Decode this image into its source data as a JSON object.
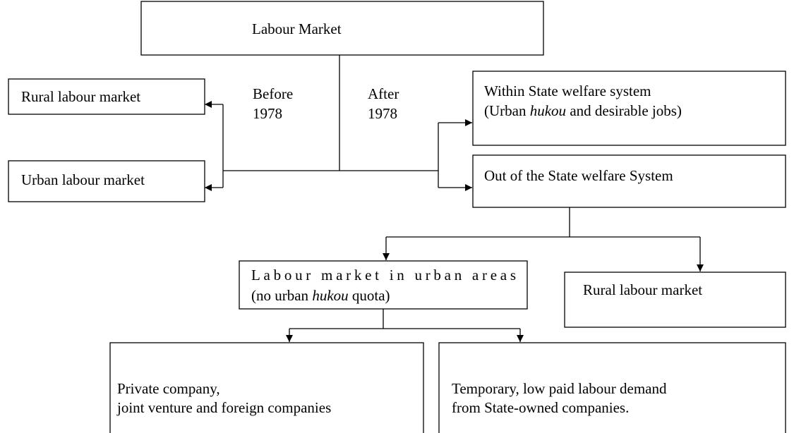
{
  "nodes": [
    {
      "lines": [
        "Labour Market"
      ]
    },
    {
      "lines": [
        "Rural labour market"
      ]
    },
    {
      "lines": [
        "Urban labour market"
      ]
    },
    {
      "lines": [
        "Within State welfare system",
        {
          "parts": [
            "(Urban ",
            "hukou",
            " and desirable jobs)"
          ]
        }
      ]
    },
    {
      "lines": [
        "Out of the State welfare System"
      ]
    },
    {
      "lines": [
        "Labour market in urban areas",
        {
          "parts": [
            "(no urban ",
            "hukou",
            " quota)"
          ]
        }
      ]
    },
    {
      "lines": [
        "Rural labour market"
      ]
    },
    {
      "lines": [
        "Private company,",
        "joint venture and foreign companies"
      ]
    },
    {
      "lines": [
        "Temporary, low paid labour demand",
        "from State-owned companies."
      ]
    }
  ],
  "labels": [
    {
      "lines": [
        "Before",
        "1978"
      ]
    },
    {
      "lines": [
        "After",
        "1978"
      ]
    }
  ]
}
